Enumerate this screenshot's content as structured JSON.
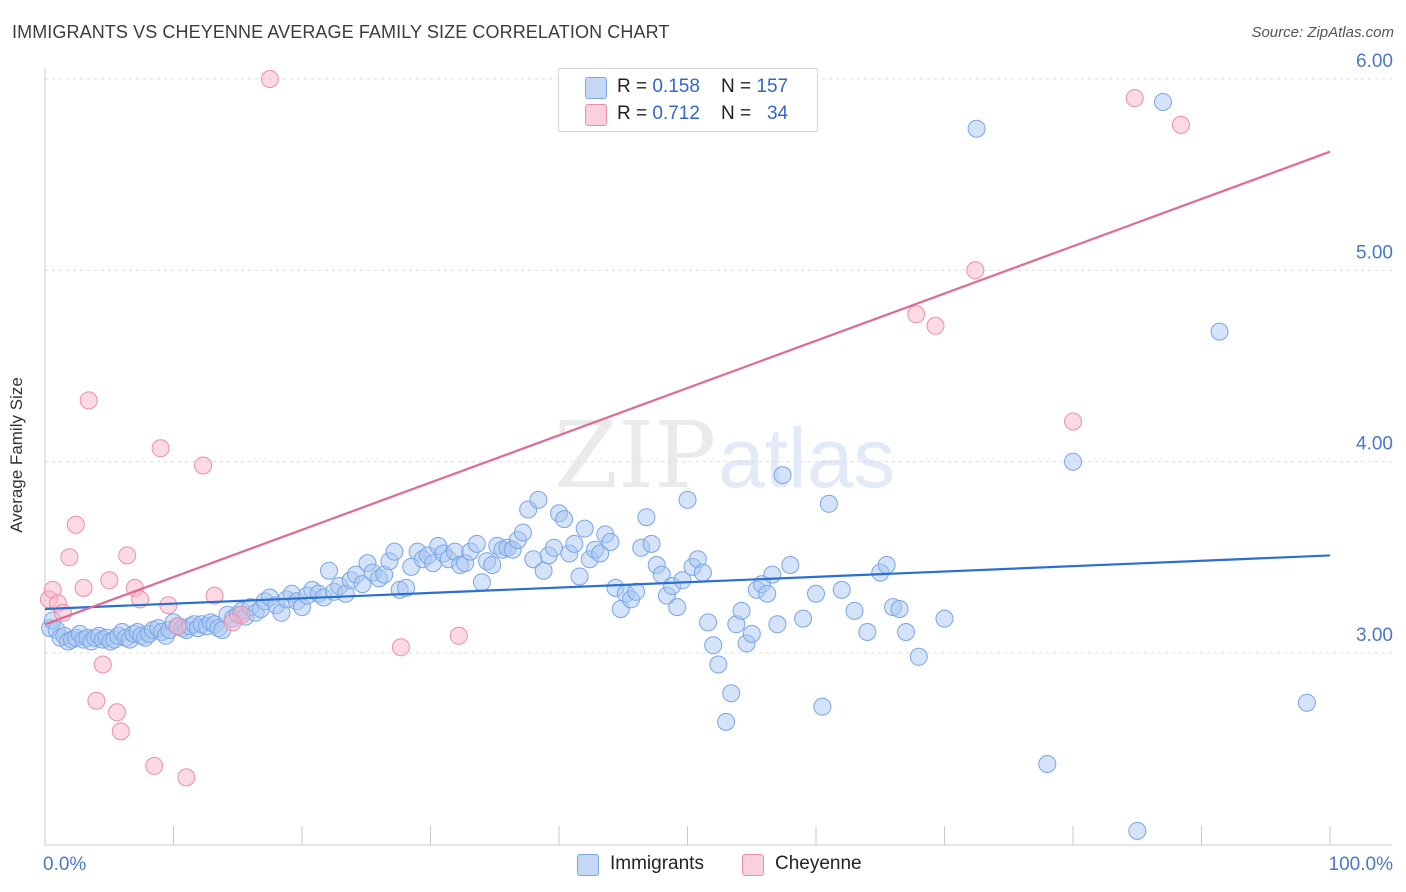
{
  "title": "IMMIGRANTS VS CHEYENNE AVERAGE FAMILY SIZE CORRELATION CHART",
  "source": "Source: ZipAtlas.com",
  "watermark": {
    "zip": "ZIP",
    "atlas": "atlas"
  },
  "legend_top": {
    "rows": [
      {
        "r_label": "R = ",
        "r_value": "0.158",
        "n_label": "N = ",
        "n_value": "157",
        "color": "#a9c7f2"
      },
      {
        "r_label": "R = ",
        "r_value": "0.712",
        "n_label": "N = ",
        "n_value": "34",
        "color": "#f7b6c8"
      }
    ]
  },
  "legend_bottom": [
    {
      "label": "Immigrants",
      "color": "#a9c7f2"
    },
    {
      "label": "Cheyenne",
      "color": "#f7b6c8"
    }
  ],
  "chart_data": {
    "type": "scatter",
    "title": "IMMIGRANTS VS CHEYENNE AVERAGE FAMILY SIZE CORRELATION CHART",
    "xlabel": "",
    "ylabel": "Average Family Size",
    "xlim": [
      0,
      100
    ],
    "ylim": [
      2.05,
      6.1
    ],
    "x_tick_labels": [
      {
        "value": 0,
        "label": "0.0%"
      },
      {
        "value": 100,
        "label": "100.0%"
      }
    ],
    "y_ticks": [
      {
        "value": 3.0,
        "label": "3.00"
      },
      {
        "value": 4.0,
        "label": "4.00"
      },
      {
        "value": 5.0,
        "label": "5.00"
      },
      {
        "value": 6.0,
        "label": "6.00"
      }
    ],
    "grid": "horizontal dashed",
    "legend_placement": "top-center",
    "series": [
      {
        "name": "Immigrants",
        "color": "#a9c7f2",
        "stroke": "#7aa6e6",
        "trend_color": "#2a6fd1",
        "trend": [
          [
            0,
            3.23
          ],
          [
            100,
            3.51
          ]
        ],
        "points": [
          [
            0.4,
            3.13
          ],
          [
            0.6,
            3.17
          ],
          [
            0.9,
            3.12
          ],
          [
            1.2,
            3.08
          ],
          [
            1.5,
            3.09
          ],
          [
            1.8,
            3.06
          ],
          [
            2.1,
            3.07
          ],
          [
            2.4,
            3.08
          ],
          [
            2.7,
            3.1
          ],
          [
            3.0,
            3.07
          ],
          [
            3.3,
            3.08
          ],
          [
            3.6,
            3.06
          ],
          [
            3.9,
            3.08
          ],
          [
            4.2,
            3.09
          ],
          [
            4.5,
            3.07
          ],
          [
            4.8,
            3.08
          ],
          [
            5.1,
            3.06
          ],
          [
            5.4,
            3.07
          ],
          [
            5.7,
            3.09
          ],
          [
            6.0,
            3.11
          ],
          [
            6.3,
            3.08
          ],
          [
            6.6,
            3.07
          ],
          [
            6.9,
            3.1
          ],
          [
            7.2,
            3.11
          ],
          [
            7.5,
            3.09
          ],
          [
            7.8,
            3.08
          ],
          [
            8.1,
            3.1
          ],
          [
            8.4,
            3.12
          ],
          [
            8.8,
            3.13
          ],
          [
            9.1,
            3.11
          ],
          [
            9.4,
            3.09
          ],
          [
            9.7,
            3.12
          ],
          [
            10.0,
            3.16
          ],
          [
            10.4,
            3.14
          ],
          [
            10.7,
            3.13
          ],
          [
            11.0,
            3.12
          ],
          [
            11.3,
            3.14
          ],
          [
            11.6,
            3.15
          ],
          [
            11.9,
            3.13
          ],
          [
            12.2,
            3.15
          ],
          [
            12.6,
            3.14
          ],
          [
            12.9,
            3.16
          ],
          [
            13.2,
            3.15
          ],
          [
            13.5,
            3.13
          ],
          [
            13.8,
            3.12
          ],
          [
            14.2,
            3.2
          ],
          [
            14.6,
            3.18
          ],
          [
            15.0,
            3.2
          ],
          [
            15.3,
            3.22
          ],
          [
            15.6,
            3.19
          ],
          [
            16.0,
            3.24
          ],
          [
            16.4,
            3.21
          ],
          [
            16.8,
            3.23
          ],
          [
            17.1,
            3.27
          ],
          [
            17.5,
            3.29
          ],
          [
            18.0,
            3.25
          ],
          [
            18.4,
            3.21
          ],
          [
            18.8,
            3.28
          ],
          [
            19.2,
            3.31
          ],
          [
            19.6,
            3.27
          ],
          [
            20.0,
            3.24
          ],
          [
            20.4,
            3.3
          ],
          [
            20.8,
            3.33
          ],
          [
            21.3,
            3.31
          ],
          [
            21.7,
            3.29
          ],
          [
            22.1,
            3.43
          ],
          [
            22.5,
            3.32
          ],
          [
            22.9,
            3.35
          ],
          [
            23.4,
            3.31
          ],
          [
            23.8,
            3.38
          ],
          [
            24.2,
            3.41
          ],
          [
            24.7,
            3.36
          ],
          [
            25.1,
            3.47
          ],
          [
            25.5,
            3.42
          ],
          [
            26.0,
            3.39
          ],
          [
            26.4,
            3.41
          ],
          [
            26.8,
            3.48
          ],
          [
            27.2,
            3.53
          ],
          [
            27.6,
            3.33
          ],
          [
            28.1,
            3.34
          ],
          [
            28.5,
            3.45
          ],
          [
            29.0,
            3.53
          ],
          [
            29.4,
            3.49
          ],
          [
            29.8,
            3.51
          ],
          [
            30.2,
            3.47
          ],
          [
            30.6,
            3.56
          ],
          [
            31.0,
            3.52
          ],
          [
            31.4,
            3.49
          ],
          [
            31.9,
            3.53
          ],
          [
            32.3,
            3.46
          ],
          [
            32.7,
            3.47
          ],
          [
            33.1,
            3.53
          ],
          [
            33.6,
            3.57
          ],
          [
            34.0,
            3.37
          ],
          [
            34.4,
            3.48
          ],
          [
            34.8,
            3.46
          ],
          [
            35.2,
            3.56
          ],
          [
            35.6,
            3.54
          ],
          [
            36.0,
            3.55
          ],
          [
            36.4,
            3.54
          ],
          [
            36.8,
            3.59
          ],
          [
            37.2,
            3.63
          ],
          [
            37.6,
            3.75
          ],
          [
            38.0,
            3.49
          ],
          [
            38.4,
            3.8
          ],
          [
            38.8,
            3.43
          ],
          [
            39.2,
            3.51
          ],
          [
            39.6,
            3.55
          ],
          [
            40.0,
            3.73
          ],
          [
            40.4,
            3.7
          ],
          [
            40.8,
            3.52
          ],
          [
            41.2,
            3.57
          ],
          [
            41.6,
            3.4
          ],
          [
            42.0,
            3.65
          ],
          [
            42.4,
            3.49
          ],
          [
            42.8,
            3.54
          ],
          [
            43.2,
            3.52
          ],
          [
            43.6,
            3.62
          ],
          [
            44.0,
            3.58
          ],
          [
            44.4,
            3.34
          ],
          [
            44.8,
            3.23
          ],
          [
            45.2,
            3.31
          ],
          [
            45.6,
            3.28
          ],
          [
            46.0,
            3.32
          ],
          [
            46.4,
            3.55
          ],
          [
            46.8,
            3.71
          ],
          [
            47.2,
            3.57
          ],
          [
            47.6,
            3.46
          ],
          [
            48.0,
            3.41
          ],
          [
            48.4,
            3.3
          ],
          [
            48.8,
            3.35
          ],
          [
            49.2,
            3.24
          ],
          [
            49.6,
            3.38
          ],
          [
            50.0,
            3.8
          ],
          [
            50.4,
            3.45
          ],
          [
            50.8,
            3.49
          ],
          [
            51.2,
            3.42
          ],
          [
            51.6,
            3.16
          ],
          [
            52.0,
            3.04
          ],
          [
            52.4,
            2.94
          ],
          [
            53.0,
            2.64
          ],
          [
            53.4,
            2.79
          ],
          [
            53.8,
            3.15
          ],
          [
            54.2,
            3.22
          ],
          [
            54.6,
            3.05
          ],
          [
            55.0,
            3.1
          ],
          [
            55.4,
            3.33
          ],
          [
            55.8,
            3.36
          ],
          [
            56.2,
            3.31
          ],
          [
            56.6,
            3.41
          ],
          [
            57.0,
            3.15
          ],
          [
            57.4,
            3.93
          ],
          [
            58.0,
            3.46
          ],
          [
            59.0,
            3.18
          ],
          [
            60.0,
            3.31
          ],
          [
            61.0,
            3.78
          ],
          [
            62.0,
            3.33
          ],
          [
            63.0,
            3.22
          ],
          [
            64.0,
            3.11
          ],
          [
            65.0,
            3.42
          ],
          [
            65.5,
            3.46
          ],
          [
            66.0,
            3.24
          ],
          [
            67.0,
            3.11
          ],
          [
            68.0,
            2.98
          ],
          [
            70.0,
            3.18
          ],
          [
            72.5,
            5.74
          ],
          [
            78.0,
            2.42
          ],
          [
            80.0,
            4.0
          ],
          [
            85.0,
            2.07
          ],
          [
            87.0,
            5.88
          ],
          [
            91.4,
            4.68
          ],
          [
            98.2,
            2.74
          ],
          [
            60.5,
            2.72
          ],
          [
            66.5,
            3.23
          ]
        ]
      },
      {
        "name": "Cheyenne",
        "color": "#f7b6c8",
        "stroke": "#ec8fab",
        "trend_color": "#e06a94",
        "trend": [
          [
            0,
            3.15
          ],
          [
            100,
            5.62
          ]
        ],
        "points": [
          [
            0.3,
            3.28
          ],
          [
            0.6,
            3.33
          ],
          [
            1.0,
            3.26
          ],
          [
            1.4,
            3.21
          ],
          [
            1.9,
            3.5
          ],
          [
            2.4,
            3.67
          ],
          [
            3.0,
            3.34
          ],
          [
            3.4,
            4.32
          ],
          [
            4.0,
            2.75
          ],
          [
            4.5,
            2.94
          ],
          [
            5.0,
            3.38
          ],
          [
            5.6,
            2.69
          ],
          [
            5.9,
            2.59
          ],
          [
            6.4,
            3.51
          ],
          [
            7.0,
            3.34
          ],
          [
            7.4,
            3.28
          ],
          [
            8.5,
            2.41
          ],
          [
            9.0,
            4.07
          ],
          [
            9.6,
            3.25
          ],
          [
            10.3,
            3.14
          ],
          [
            11.0,
            2.35
          ],
          [
            12.3,
            3.98
          ],
          [
            13.2,
            3.3
          ],
          [
            15.3,
            3.2
          ],
          [
            17.5,
            6.0
          ],
          [
            27.7,
            3.03
          ],
          [
            32.2,
            3.09
          ],
          [
            67.8,
            4.77
          ],
          [
            69.3,
            4.71
          ],
          [
            72.4,
            5.0
          ],
          [
            80.0,
            4.21
          ],
          [
            84.8,
            5.9
          ],
          [
            88.4,
            5.76
          ],
          [
            14.6,
            3.16
          ]
        ]
      }
    ]
  }
}
